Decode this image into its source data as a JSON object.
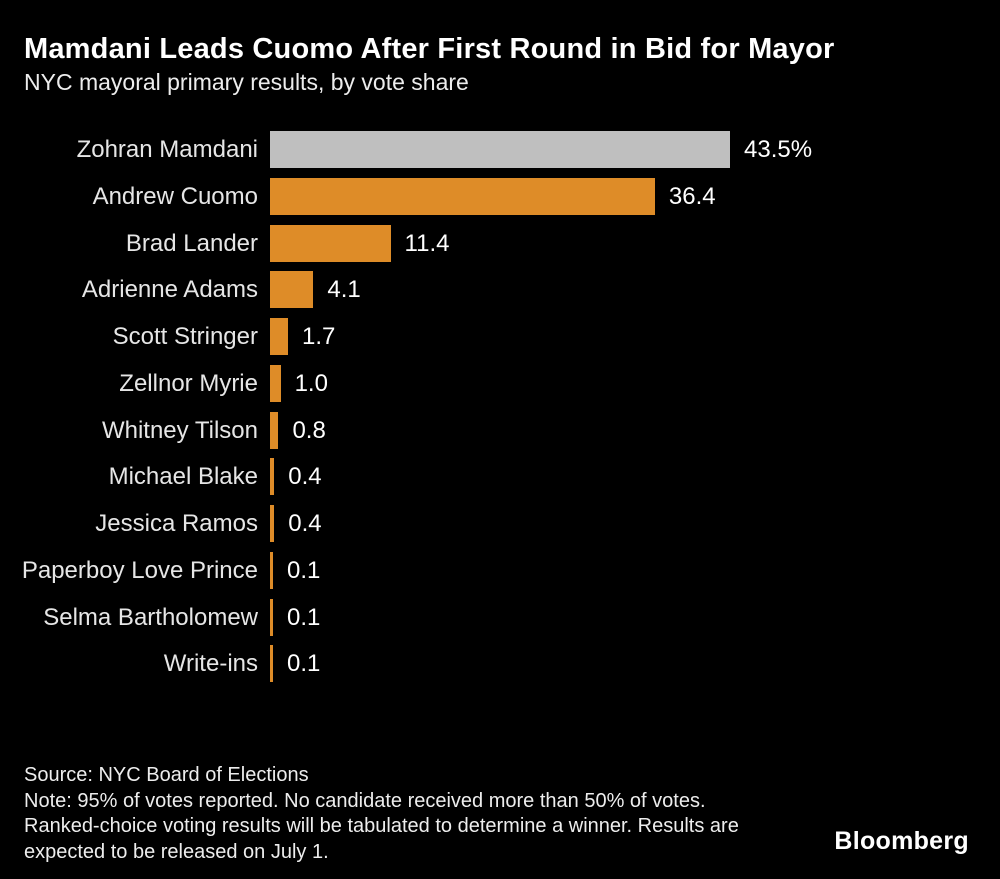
{
  "header": {
    "title": "Mamdani Leads Cuomo After First Round in Bid for Mayor",
    "subtitle": "NYC mayoral primary results, by vote share"
  },
  "chart_data": {
    "type": "bar",
    "orientation": "horizontal",
    "title": "Mamdani Leads Cuomo After First Round in Bid for Mayor",
    "subtitle": "NYC mayoral primary results, by vote share",
    "xlabel": "",
    "ylabel": "",
    "xlim": [
      0,
      45
    ],
    "grid": false,
    "legend": false,
    "categories": [
      "Zohran Mamdani",
      "Andrew Cuomo",
      "Brad Lander",
      "Adrienne Adams",
      "Scott Stringer",
      "Zellnor Myrie",
      "Whitney Tilson",
      "Michael Blake",
      "Jessica Ramos",
      "Paperboy Love Prince",
      "Selma Bartholomew",
      "Write-ins"
    ],
    "values": [
      43.5,
      36.4,
      11.4,
      4.1,
      1.7,
      1.0,
      0.8,
      0.4,
      0.4,
      0.1,
      0.1,
      0.1
    ],
    "value_labels": [
      "43.5%",
      "36.4",
      "11.4",
      "4.1",
      "1.7",
      "1.0",
      "0.8",
      "0.4",
      "0.4",
      "0.1",
      "0.1",
      "0.1"
    ],
    "colors": [
      "#bfbfbf",
      "#de8c28",
      "#de8c28",
      "#de8c28",
      "#de8c28",
      "#de8c28",
      "#de8c28",
      "#de8c28",
      "#de8c28",
      "#de8c28",
      "#de8c28",
      "#de8c28"
    ],
    "accent_colors": {
      "leader_bar": "#bfbfbf",
      "default_bar": "#de8c28",
      "background": "#000000",
      "text": "#ffffff"
    }
  },
  "footer": {
    "source": "Source: NYC Board of Elections",
    "note": "Note: 95% of votes reported. No candidate received more than 50% of votes. Ranked-choice voting results will be tabulated to determine a winner. Results are expected to be released on July 1."
  },
  "branding": {
    "logo": "Bloomberg"
  }
}
